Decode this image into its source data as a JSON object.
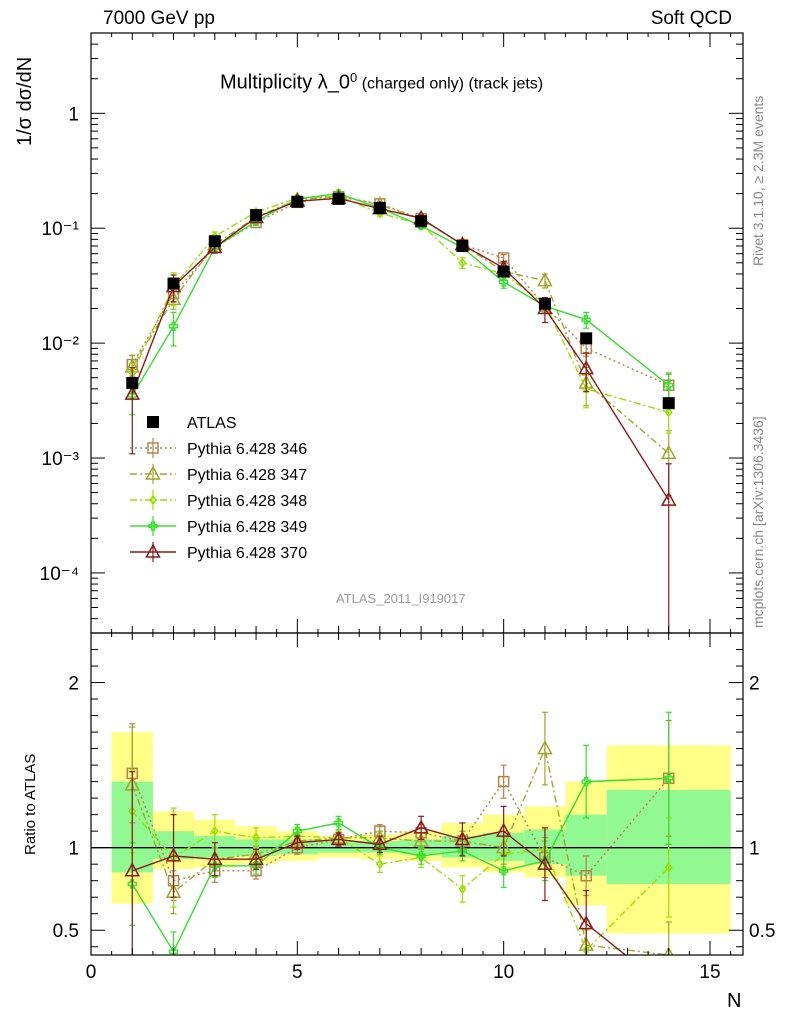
{
  "header": {
    "left": "7000 GeV pp",
    "right": "Soft QCD"
  },
  "title": {
    "main": "Multiplicity λ_0",
    "sup": "0",
    "small": " (charged only) (track jets)"
  },
  "side_labels": {
    "top": "Rivet 3.1.10, ≥ 2.3M events",
    "bottom": "mcplots.cern.ch [arXiv:1306.3436]"
  },
  "watermark": "ATLAS_2011_I919017",
  "colors": {
    "atlas": "#000000",
    "p346": "#B5834A",
    "p347": "#A0A62A",
    "p348": "#96E000",
    "p349": "#33E02A",
    "p370": "#8B1A1A",
    "band_yellow": "#FFFF88",
    "band_green": "#92F892"
  },
  "chart_data": {
    "type": "scatter",
    "xlabel": "N",
    "ylabel": "1/σ dσ/dN",
    "ratio_ylabel": "Ratio to ATLAS",
    "xlim": [
      0,
      15.8
    ],
    "ylim": [
      3e-05,
      5
    ],
    "yscale": "log",
    "ratio_ylim": [
      0.35,
      2.3
    ],
    "x_ticks": [
      "0",
      "5",
      "10",
      "15"
    ],
    "y_ticks": [
      "10⁻⁴",
      "10⁻³",
      "10⁻²",
      "10⁻¹",
      "1"
    ],
    "ratio_ticks": [
      "0.5",
      "1",
      "2"
    ],
    "legend_position": "middle-left",
    "series": [
      {
        "name": "ATLAS",
        "key": "atlas",
        "marker": "square",
        "x": [
          1,
          2,
          3,
          4,
          5,
          6,
          7,
          8,
          9,
          10,
          11,
          12,
          14
        ],
        "y": [
          0.0045,
          0.033,
          0.077,
          0.13,
          0.17,
          0.18,
          0.15,
          0.115,
          0.07,
          0.042,
          0.022,
          0.011,
          0.003
        ],
        "band_yellow": [
          [
            0.5,
            1.5,
            0.66,
            1.7
          ],
          [
            1.5,
            2.5,
            0.87,
            1.22
          ],
          [
            2.5,
            3.5,
            0.88,
            1.17
          ],
          [
            3.5,
            4.5,
            0.9,
            1.13
          ],
          [
            4.5,
            5.5,
            0.92,
            1.1
          ],
          [
            5.5,
            6.5,
            0.94,
            1.07
          ],
          [
            6.5,
            7.5,
            0.93,
            1.08
          ],
          [
            7.5,
            8.5,
            0.92,
            1.1
          ],
          [
            8.5,
            9.5,
            0.88,
            1.15
          ],
          [
            9.5,
            10.5,
            0.85,
            1.2
          ],
          [
            10.5,
            11.5,
            0.82,
            1.25
          ],
          [
            11.5,
            12.5,
            0.65,
            1.4
          ],
          [
            12.5,
            15.5,
            0.48,
            1.62
          ]
        ],
        "band_green": [
          [
            0.5,
            1.5,
            0.85,
            1.4
          ],
          [
            1.5,
            2.5,
            0.93,
            1.1
          ],
          [
            2.5,
            3.5,
            0.94,
            1.07
          ],
          [
            3.5,
            4.5,
            0.95,
            1.05
          ],
          [
            4.5,
            5.5,
            0.96,
            1.05
          ],
          [
            5.5,
            6.5,
            0.97,
            1.04
          ],
          [
            6.5,
            7.5,
            0.97,
            1.04
          ],
          [
            7.5,
            8.5,
            0.96,
            1.05
          ],
          [
            8.5,
            9.5,
            0.94,
            1.07
          ],
          [
            9.5,
            10.5,
            0.92,
            1.09
          ],
          [
            10.5,
            11.5,
            0.9,
            1.11
          ],
          [
            11.5,
            12.5,
            0.83,
            1.2
          ],
          [
            12.5,
            15.5,
            0.78,
            1.35
          ]
        ]
      },
      {
        "name": "Pythia 6.428 346",
        "key": "p346",
        "marker": "open-square",
        "line": "dotted",
        "x": [
          1,
          2,
          3,
          4,
          5,
          6,
          7,
          8,
          9,
          10,
          11,
          12,
          14
        ],
        "y": [
          0.0065,
          0.027,
          0.068,
          0.112,
          0.168,
          0.188,
          0.163,
          0.121,
          0.072,
          0.055,
          0.021,
          0.009,
          0.0043
        ],
        "ratio": [
          1.45,
          0.8,
          0.86,
          0.86,
          1.0,
          1.05,
          1.1,
          1.09,
          1.04,
          1.4,
          0.94,
          0.83,
          1.42
        ],
        "rerr": [
          0.3,
          0.12,
          0.07,
          0.05,
          0.04,
          0.04,
          0.04,
          0.05,
          0.06,
          0.1,
          0.12,
          0.12,
          0.35
        ]
      },
      {
        "name": "Pythia 6.428 347",
        "key": "p347",
        "marker": "open-triangle",
        "line": "dashdot",
        "x": [
          1,
          2,
          3,
          4,
          5,
          6,
          7,
          8,
          9,
          10,
          11,
          12,
          14
        ],
        "y": [
          0.0062,
          0.024,
          0.072,
          0.125,
          0.177,
          0.19,
          0.16,
          0.12,
          0.072,
          0.042,
          0.035,
          0.0045,
          0.0011
        ],
        "ratio": [
          1.38,
          0.73,
          0.93,
          0.96,
          1.04,
          1.06,
          1.06,
          1.04,
          1.04,
          1.0,
          1.6,
          0.41,
          0.35
        ],
        "rerr": [
          0.35,
          0.13,
          0.07,
          0.05,
          0.04,
          0.04,
          0.04,
          0.05,
          0.06,
          0.1,
          0.22,
          0.15,
          0.2
        ]
      },
      {
        "name": "Pythia 6.428 348",
        "key": "p348",
        "marker": "open-diamond",
        "line": "dashdot",
        "x": [
          1,
          2,
          3,
          4,
          5,
          6,
          7,
          8,
          9,
          10,
          11,
          12,
          14
        ],
        "y": [
          0.0055,
          0.031,
          0.085,
          0.138,
          0.183,
          0.19,
          0.135,
          0.108,
          0.05,
          0.04,
          0.022,
          0.004,
          0.0025
        ],
        "ratio": [
          1.22,
          0.94,
          1.1,
          1.06,
          1.07,
          1.06,
          0.9,
          0.94,
          0.75,
          0.96,
          0.99,
          0.38,
          0.88
        ],
        "rerr": [
          0.25,
          0.3,
          0.1,
          0.06,
          0.05,
          0.04,
          0.05,
          0.06,
          0.08,
          0.1,
          0.12,
          0.12,
          0.3
        ]
      },
      {
        "name": "Pythia 6.428 349",
        "key": "p349",
        "marker": "open-cross",
        "line": "solid",
        "x": [
          1,
          2,
          3,
          4,
          5,
          6,
          7,
          8,
          9,
          10,
          11,
          12,
          14
        ],
        "y": [
          0.0035,
          0.014,
          0.068,
          0.115,
          0.18,
          0.2,
          0.15,
          0.105,
          0.068,
          0.034,
          0.021,
          0.016,
          0.0043
        ],
        "ratio": [
          0.78,
          0.37,
          0.89,
          0.89,
          1.1,
          1.15,
          1.0,
          0.95,
          0.98,
          0.86,
          0.92,
          1.4,
          1.42
        ],
        "rerr": [
          0.25,
          0.12,
          0.07,
          0.05,
          0.04,
          0.04,
          0.04,
          0.05,
          0.06,
          0.1,
          0.12,
          0.22,
          0.4
        ]
      },
      {
        "name": "Pythia 6.428 370",
        "key": "p370",
        "marker": "open-triangle",
        "line": "solid",
        "x": [
          1,
          2,
          3,
          4,
          5,
          6,
          7,
          8,
          9,
          10,
          11,
          12,
          14
        ],
        "y": [
          0.0036,
          0.031,
          0.068,
          0.124,
          0.172,
          0.182,
          0.148,
          0.122,
          0.072,
          0.045,
          0.02,
          0.006,
          0.00043
        ],
        "ratio": [
          0.86,
          0.95,
          0.93,
          0.93,
          1.03,
          1.05,
          1.02,
          1.12,
          1.05,
          1.1,
          0.9,
          0.54,
          0.14
        ],
        "rerr": [
          0.6,
          0.25,
          0.1,
          0.06,
          0.04,
          0.04,
          0.05,
          0.07,
          0.1,
          0.15,
          0.22,
          0.2,
          0.15
        ]
      }
    ]
  }
}
